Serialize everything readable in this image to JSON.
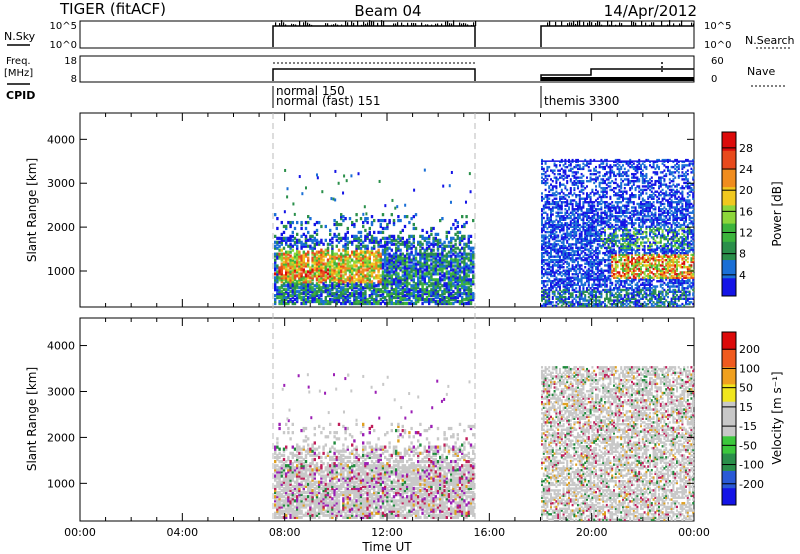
{
  "header": {
    "radar": "TIGER (fitACF)",
    "beam": "Beam 04",
    "date": "14/Apr/2012"
  },
  "summary": {
    "nsky_label": "N.Sky",
    "nsky_ticks": [
      "10^5",
      "10^0"
    ],
    "nsearch_label": "N.Search",
    "nsearch_ticks": [
      "10^5",
      "10^0"
    ],
    "freq_label_1": "Freq.",
    "freq_label_2": "[MHz]",
    "freq_ticks": [
      "18",
      "8"
    ],
    "nave_label": "Nave",
    "nave_ticks": [
      "60",
      "0"
    ],
    "cpid_label": "CPID",
    "cpid_entries": [
      "normal 150",
      "normal (fast) 151",
      "themis 3300"
    ]
  },
  "colors": {
    "power": [
      "#1414e6",
      "#1a6fd6",
      "#2a8f4a",
      "#3cb43c",
      "#8dd63a",
      "#f0c81e",
      "#f08c1e",
      "#e84a1c",
      "#dc0a0a"
    ],
    "velocity": [
      "#1414e6",
      "#2a5ad6",
      "#2a8f4a",
      "#3cc83c",
      "#c8c8c8",
      "#c8c8c8",
      "#f0e61e",
      "#f0a01e",
      "#f05a1e",
      "#dc0a0a"
    ],
    "velocity_noise": [
      "#9b1fb5",
      "#c01e5a",
      "#1e8a3c",
      "#e0a020"
    ]
  },
  "chart_data": [
    {
      "type": "heatmap",
      "name": "power",
      "ylabel": "Slant Range [km]",
      "yticks": [
        "1000",
        "2000",
        "3000",
        "4000"
      ],
      "ylim": [
        180,
        4600
      ],
      "colorbar_label": "Power [dB]",
      "colorbar_ticks": [
        "4",
        "8",
        "12",
        "16",
        "20",
        "24",
        "28"
      ],
      "colorbar_range": [
        0,
        31
      ],
      "data_windows_ut": [
        [
          7.25,
          15.3
        ],
        [
          18.0,
          24.0
        ]
      ]
    },
    {
      "type": "heatmap",
      "name": "velocity",
      "ylabel": "Slant Range [km]",
      "yticks": [
        "1000",
        "2000",
        "3000",
        "4000"
      ],
      "ylim": [
        180,
        4600
      ],
      "colorbar_label": "Velocity [m s⁻¹]",
      "colorbar_ticks": [
        "200",
        "100",
        "50",
        "15",
        "-15",
        "-50",
        "-100",
        "-200"
      ],
      "data_windows_ut": [
        [
          7.25,
          15.3
        ],
        [
          18.0,
          24.0
        ]
      ]
    }
  ],
  "time_axis": {
    "label": "Time UT",
    "ticks": [
      "00:00",
      "04:00",
      "08:00",
      "12:00",
      "16:00",
      "20:00",
      "00:00"
    ],
    "range_hours": [
      0,
      24
    ]
  }
}
